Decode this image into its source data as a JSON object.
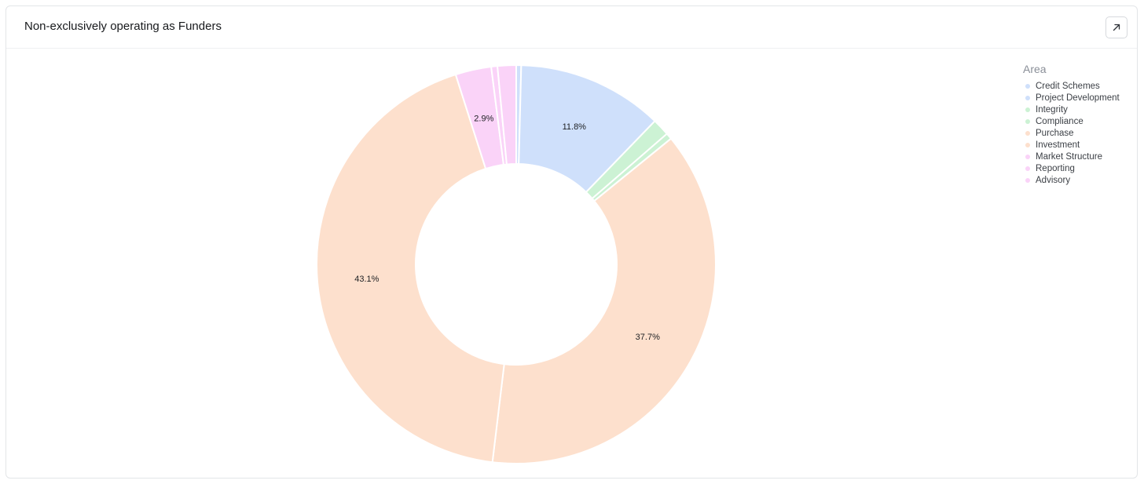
{
  "header": {
    "title": "Non-exclusively operating as Funders",
    "expand_icon": "arrow-up-right-icon"
  },
  "legend": {
    "title": "Area"
  },
  "chart_data": {
    "type": "pie",
    "variant": "donut",
    "legend_title": "Area",
    "legend_position": "top-right",
    "series": [
      {
        "name": "Credit Schemes",
        "value": 0.4,
        "color": "#cfe0fb",
        "label": ""
      },
      {
        "name": "Project Development",
        "value": 11.8,
        "color": "#cfe0fb",
        "label": "11.8%"
      },
      {
        "name": "Integrity",
        "value": 1.4,
        "color": "#ccf2d4",
        "label": ""
      },
      {
        "name": "Compliance",
        "value": 0.5,
        "color": "#ccf2d4",
        "label": ""
      },
      {
        "name": "Purchase",
        "value": 37.7,
        "color": "#fde0cd",
        "label": "37.7%"
      },
      {
        "name": "Investment",
        "value": 43.1,
        "color": "#fde0cd",
        "label": "43.1%"
      },
      {
        "name": "Market Structure",
        "value": 2.9,
        "color": "#fad3f8",
        "label": "2.9%"
      },
      {
        "name": "Reporting",
        "value": 0.5,
        "color": "#fad3f8",
        "label": ""
      },
      {
        "name": "Advisory",
        "value": 1.5,
        "color": "#fad3f8",
        "label": ""
      }
    ]
  }
}
